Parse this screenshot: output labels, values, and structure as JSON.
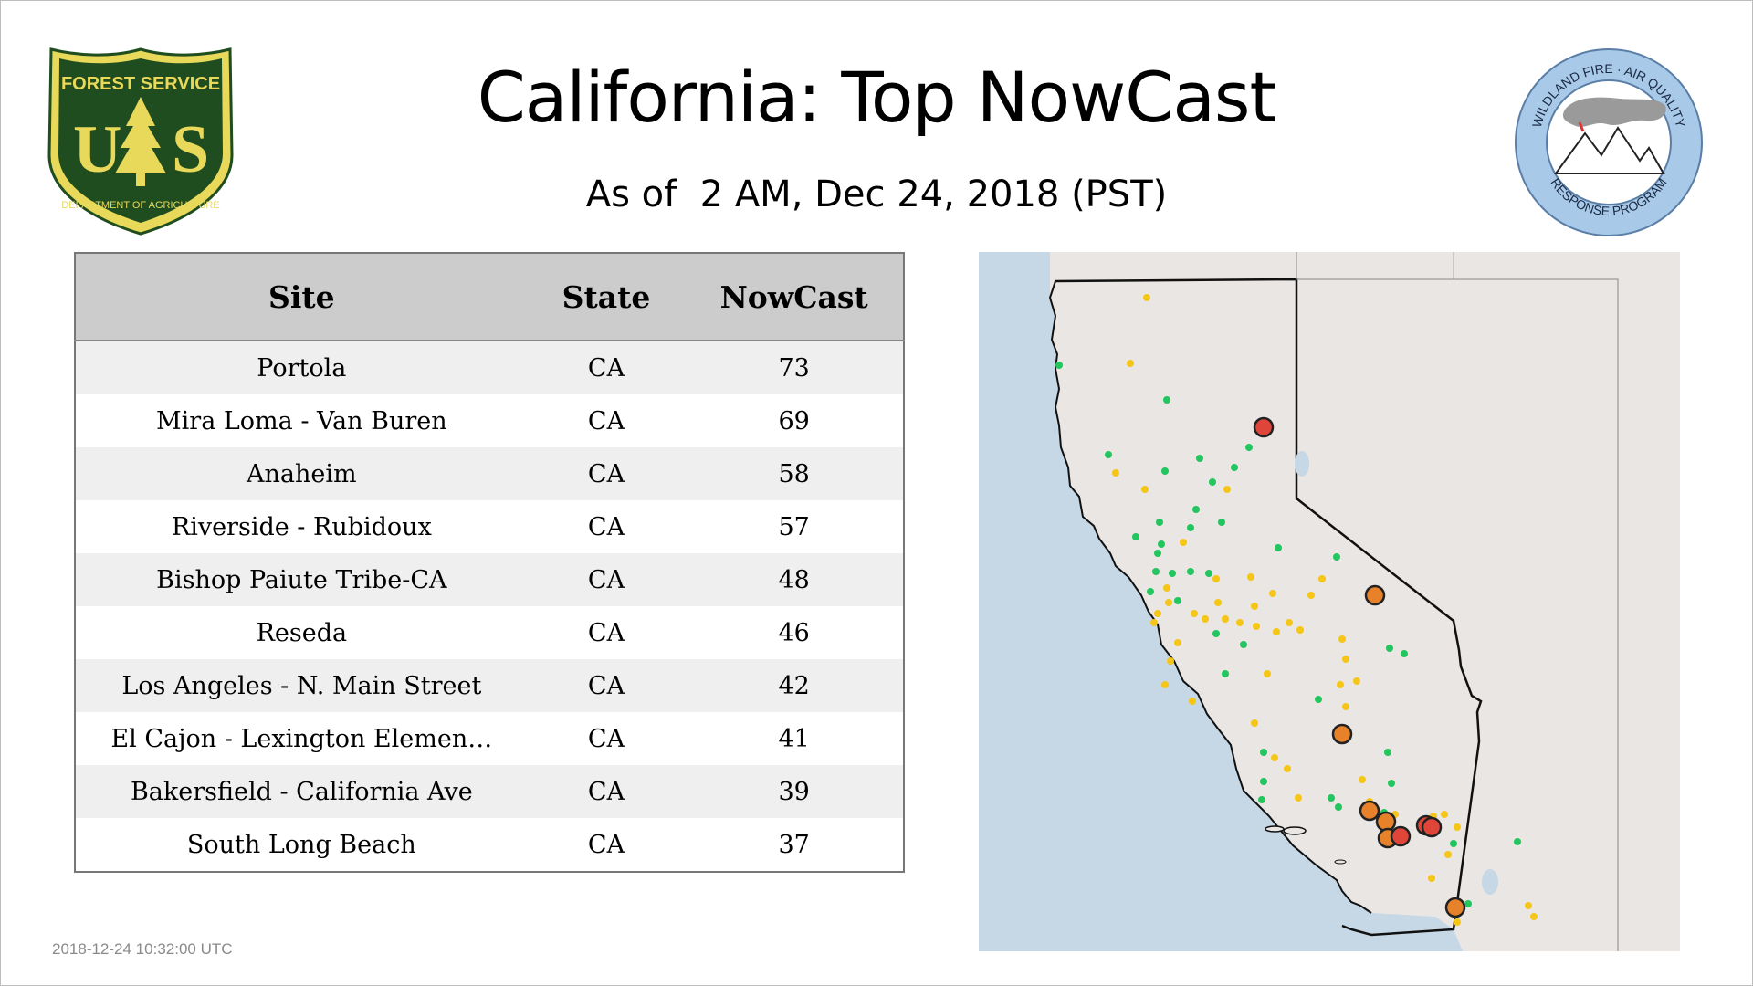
{
  "header": {
    "title": "California: Top NowCast",
    "subtitle": "As of  2 AM, Dec 24, 2018 (PST)"
  },
  "logos": {
    "forest_service": {
      "top_text": "FOREST SERVICE",
      "letters": "U S",
      "bottom_text": "DEPARTMENT OF AGRICULTURE"
    },
    "wildland_fire": {
      "top_text": "WILDLAND FIRE · AIR QUALITY",
      "bottom_text": "RESPONSE PROGRAM"
    }
  },
  "table": {
    "headers": {
      "site": "Site",
      "state": "State",
      "nowcast": "NowCast"
    },
    "rows": [
      {
        "site": "Portola",
        "state": "CA",
        "nowcast": "73"
      },
      {
        "site": "Mira Loma - Van Buren",
        "state": "CA",
        "nowcast": "69"
      },
      {
        "site": "Anaheim",
        "state": "CA",
        "nowcast": "58"
      },
      {
        "site": "Riverside - Rubidoux",
        "state": "CA",
        "nowcast": "57"
      },
      {
        "site": "Bishop Paiute Tribe-CA",
        "state": "CA",
        "nowcast": "48"
      },
      {
        "site": "Reseda",
        "state": "CA",
        "nowcast": "46"
      },
      {
        "site": "Los Angeles - N. Main Street",
        "state": "CA",
        "nowcast": "42"
      },
      {
        "site": "El Cajon - Lexington Elemen…",
        "state": "CA",
        "nowcast": "41"
      },
      {
        "site": "Bakersfield - California Ave",
        "state": "CA",
        "nowcast": "39"
      },
      {
        "site": "South Long Beach",
        "state": "CA",
        "nowcast": "37"
      }
    ]
  },
  "colors": {
    "good": "#22c55e",
    "moderate": "#f5c518",
    "usg": "#e8822a",
    "unhealthy": "#e0453a",
    "water": "#c6d7e6",
    "land": "#e9e6e3",
    "fs_green": "#1f4d1f",
    "fs_gold": "#e8d95a",
    "wf_blue": "#a9c9e8"
  },
  "footer": {
    "timestamp": "2018-12-24 10:32:00 UTC"
  }
}
